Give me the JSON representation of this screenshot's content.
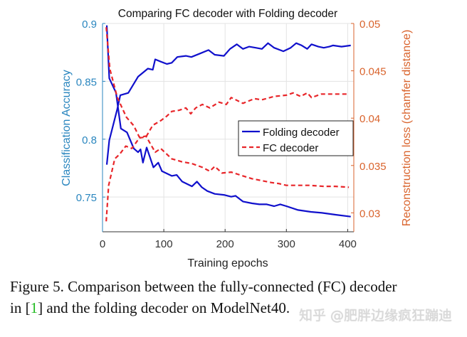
{
  "chart_data": {
    "type": "line",
    "title": "Comparing FC decoder with Folding decoder",
    "xlabel": "Training epochs",
    "ylabel_left": "Classification Accuracy",
    "ylabel_right": "Reconstruction loss (chamfer distance)",
    "xlim": [
      0,
      410
    ],
    "ylim_left": [
      0.72,
      0.9
    ],
    "ylim_right": [
      0.028,
      0.05
    ],
    "xticks": [
      "0",
      "100",
      "200",
      "300",
      "400"
    ],
    "yticks_left": [
      "0.75",
      "0.8",
      "0.85",
      "0.9"
    ],
    "yticks_right": [
      "0.03",
      "0.035",
      "0.04",
      "0.045",
      "0.05"
    ],
    "grid": true,
    "legend_position": "center-right",
    "legend": [
      "Folding decoder",
      "FC decoder"
    ],
    "colors": {
      "folding": "#1010cc",
      "fc": "#e8262a",
      "left_axis": "#2a86bf",
      "right_axis": "#d9632c"
    },
    "series": [
      {
        "name": "Folding decoder",
        "metric": "accuracy",
        "axis": "left",
        "style": "solid",
        "x": [
          7,
          11,
          24,
          29,
          42,
          58,
          74,
          82,
          86,
          95,
          105,
          113,
          122,
          136,
          145,
          159,
          173,
          183,
          198,
          208,
          219,
          229,
          239,
          250,
          260,
          270,
          280,
          295,
          307,
          316,
          325,
          334,
          341,
          352,
          361,
          370,
          376,
          390,
          405
        ],
        "y": [
          0.778,
          0.799,
          0.826,
          0.838,
          0.84,
          0.854,
          0.861,
          0.86,
          0.869,
          0.867,
          0.865,
          0.866,
          0.871,
          0.872,
          0.871,
          0.874,
          0.877,
          0.873,
          0.872,
          0.878,
          0.882,
          0.878,
          0.88,
          0.879,
          0.878,
          0.883,
          0.879,
          0.876,
          0.879,
          0.883,
          0.881,
          0.878,
          0.882,
          0.88,
          0.879,
          0.88,
          0.881,
          0.88,
          0.881
        ]
      },
      {
        "name": "Folding decoder",
        "metric": "loss",
        "axis": "right",
        "style": "solid",
        "x": [
          7,
          11,
          22,
          30,
          40,
          51,
          58,
          62,
          66,
          72,
          83,
          91,
          97,
          113,
          121,
          130,
          146,
          154,
          162,
          171,
          183,
          198,
          210,
          217,
          229,
          244,
          256,
          268,
          280,
          290,
          300,
          319,
          340,
          358,
          380,
          405
        ],
        "y": [
          0.0498,
          0.0442,
          0.0427,
          0.0389,
          0.0385,
          0.0368,
          0.0364,
          0.0367,
          0.0353,
          0.0369,
          0.0348,
          0.0353,
          0.0344,
          0.0339,
          0.034,
          0.0333,
          0.0328,
          0.0333,
          0.0327,
          0.0323,
          0.032,
          0.0319,
          0.0317,
          0.0318,
          0.0312,
          0.031,
          0.0309,
          0.0309,
          0.0307,
          0.0309,
          0.0307,
          0.0303,
          0.0301,
          0.03,
          0.0298,
          0.0296
        ]
      },
      {
        "name": "FC decoder",
        "metric": "accuracy",
        "axis": "left",
        "style": "dashed",
        "x": [
          6,
          10,
          20,
          28,
          38,
          48,
          60,
          71,
          82,
          95,
          105,
          113,
          125,
          136,
          144,
          152,
          163,
          175,
          190,
          202,
          210,
          229,
          248,
          260,
          280,
          300,
          311,
          323,
          334,
          341,
          357,
          376,
          402
        ],
        "y": [
          0.729,
          0.76,
          0.783,
          0.787,
          0.794,
          0.792,
          0.801,
          0.802,
          0.812,
          0.816,
          0.82,
          0.824,
          0.825,
          0.827,
          0.822,
          0.827,
          0.83,
          0.827,
          0.832,
          0.83,
          0.836,
          0.831,
          0.835,
          0.834,
          0.837,
          0.838,
          0.84,
          0.837,
          0.84,
          0.836,
          0.839,
          0.839,
          0.839
        ]
      },
      {
        "name": "FC decoder",
        "metric": "loss",
        "axis": "right",
        "style": "dashed",
        "x": [
          6,
          12,
          24,
          39,
          51,
          60,
          71,
          86,
          95,
          113,
          129,
          146,
          163,
          175,
          183,
          195,
          210,
          229,
          244,
          260,
          275,
          287,
          300,
          319,
          338,
          361,
          380,
          402
        ],
        "y": [
          0.0496,
          0.0452,
          0.0422,
          0.0401,
          0.0392,
          0.038,
          0.0381,
          0.0364,
          0.0368,
          0.0357,
          0.0354,
          0.0352,
          0.0348,
          0.0344,
          0.0349,
          0.0342,
          0.0343,
          0.0339,
          0.0336,
          0.0334,
          0.0332,
          0.0331,
          0.0329,
          0.0329,
          0.0329,
          0.0328,
          0.0328,
          0.0327
        ]
      }
    ]
  },
  "caption": {
    "line1": "Figure 5. Comparison between the fully-connected (FC) decoder",
    "line2_pre": "in [",
    "line2_cite": "1",
    "line2_post": "] and the folding decoder on ModelNet40."
  },
  "watermark": "知乎 @肥胖边缘疯狂蹦迪"
}
